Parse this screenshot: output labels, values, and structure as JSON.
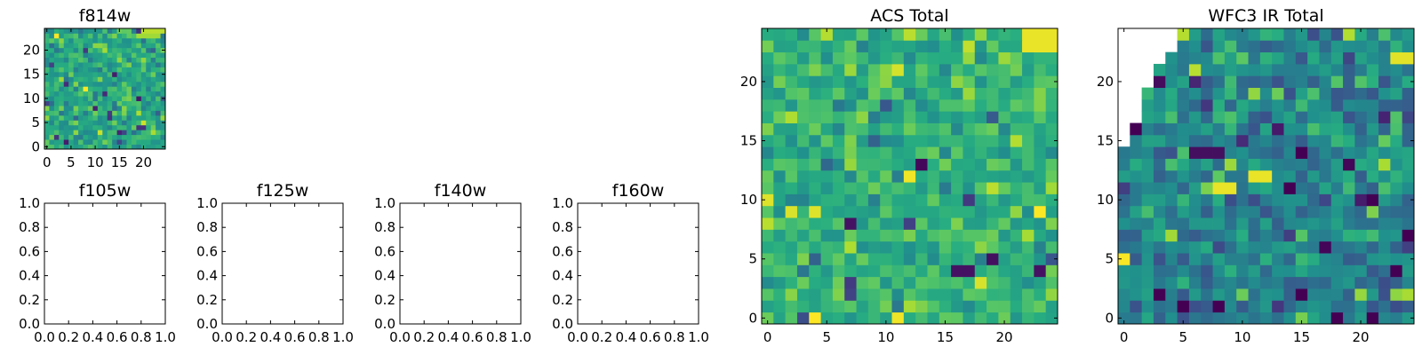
{
  "chart_data": [
    {
      "id": "f814w",
      "type": "heatmap",
      "title": "f814w",
      "xticks": [
        "0",
        "5",
        "10",
        "15",
        "20"
      ],
      "yticks": [
        "0",
        "5",
        "10",
        "15",
        "20"
      ],
      "xlim": [
        -0.5,
        24.5
      ],
      "ylim": [
        -0.5,
        24.5
      ],
      "colormap": "viridis",
      "grid_size": 25,
      "generated": true,
      "seed": 814,
      "value_range": [
        0.15,
        1.0
      ],
      "base_level": 0.66,
      "spread": 0.1,
      "hotspots": [
        {
          "row": 24,
          "cols": [
            20,
            21,
            22,
            23,
            24
          ],
          "value": 0.9
        },
        {
          "row": 23,
          "cols": [
            19,
            20,
            21,
            22,
            23
          ],
          "value": 0.86
        },
        {
          "row": 4,
          "cols": [
            19,
            20
          ],
          "value": 0.15
        },
        {
          "row": 11,
          "cols": [
            12
          ],
          "value": 0.12
        }
      ],
      "masked": []
    },
    {
      "id": "f105w",
      "type": "empty",
      "title": "f105w",
      "xticks": [
        "0.0",
        "0.2",
        "0.4",
        "0.6",
        "0.8",
        "1.0"
      ],
      "yticks": [
        "0.0",
        "0.2",
        "0.4",
        "0.6",
        "0.8",
        "1.0"
      ],
      "xlim": [
        0,
        1
      ],
      "ylim": [
        0,
        1
      ]
    },
    {
      "id": "f125w",
      "type": "empty",
      "title": "f125w",
      "xticks": [
        "0.0",
        "0.2",
        "0.4",
        "0.6",
        "0.8",
        "1.0"
      ],
      "yticks": [
        "0.0",
        "0.2",
        "0.4",
        "0.6",
        "0.8",
        "1.0"
      ],
      "xlim": [
        0,
        1
      ],
      "ylim": [
        0,
        1
      ]
    },
    {
      "id": "f140w",
      "type": "empty",
      "title": "f140w",
      "xticks": [
        "0.0",
        "0.2",
        "0.4",
        "0.6",
        "0.8",
        "1.0"
      ],
      "yticks": [
        "0.0",
        "0.2",
        "0.4",
        "0.6",
        "0.8",
        "1.0"
      ],
      "xlim": [
        0,
        1
      ],
      "ylim": [
        0,
        1
      ]
    },
    {
      "id": "f160w",
      "type": "empty",
      "title": "f160w",
      "xticks": [
        "0.0",
        "0.2",
        "0.4",
        "0.6",
        "0.8",
        "1.0"
      ],
      "yticks": [
        "0.0",
        "0.2",
        "0.4",
        "0.6",
        "0.8",
        "1.0"
      ],
      "xlim": [
        0,
        1
      ],
      "ylim": [
        0,
        1
      ]
    },
    {
      "id": "acs-total",
      "type": "heatmap",
      "title": "ACS Total",
      "xticks": [
        "0",
        "5",
        "10",
        "15",
        "20"
      ],
      "yticks": [
        "0",
        "5",
        "10",
        "15",
        "20"
      ],
      "xlim": [
        -0.5,
        24.5
      ],
      "ylim": [
        -0.5,
        24.5
      ],
      "colormap": "viridis",
      "grid_size": 25,
      "generated": true,
      "seed": 2024,
      "value_range": [
        0.15,
        1.0
      ],
      "base_level": 0.7,
      "spread": 0.1,
      "hotspots": [
        {
          "row": 24,
          "cols": [
            22,
            23,
            24
          ],
          "value": 0.97
        },
        {
          "row": 23,
          "cols": [
            22,
            23,
            24
          ],
          "value": 0.97
        },
        {
          "row": 4,
          "cols": [
            16,
            17
          ],
          "value": 0.05
        },
        {
          "row": 13,
          "cols": [
            13
          ],
          "value": 0.02
        },
        {
          "row": 8,
          "cols": [
            7
          ],
          "value": 0.05
        },
        {
          "row": 5,
          "cols": [
            19
          ],
          "value": 0.04
        },
        {
          "row": 4,
          "cols": [
            23
          ],
          "value": 0.05
        },
        {
          "row": 10,
          "cols": [
            0
          ],
          "value": 0.95
        },
        {
          "row": 0,
          "cols": [
            11
          ],
          "value": 0.98
        },
        {
          "row": 12,
          "cols": [
            12
          ],
          "value": 0.98
        }
      ],
      "masked": []
    },
    {
      "id": "wfc3-ir-total",
      "type": "heatmap",
      "title": "WFC3 IR Total",
      "xticks": [
        "0",
        "5",
        "10",
        "15",
        "20"
      ],
      "yticks": [
        "0",
        "5",
        "10",
        "15",
        "20"
      ],
      "xlim": [
        -0.5,
        24.5
      ],
      "ylim": [
        -0.5,
        24.5
      ],
      "colormap": "viridis",
      "grid_size": 25,
      "generated": true,
      "seed": 3160,
      "value_range": [
        0.02,
        0.45
      ],
      "base_level": 0.22,
      "spread": 0.06,
      "hotspots": [
        {
          "row": 11,
          "cols": [
            8,
            9
          ],
          "value": 0.97
        },
        {
          "row": 12,
          "cols": [
            11,
            12
          ],
          "value": 0.97
        },
        {
          "row": 12,
          "cols": [
            8
          ],
          "value": 0.75
        },
        {
          "row": 11,
          "cols": [
            7
          ],
          "value": 0.8
        },
        {
          "row": 11,
          "cols": [
            11
          ],
          "value": 0.55
        },
        {
          "row": 22,
          "cols": [
            23,
            24
          ],
          "value": 0.96
        },
        {
          "row": 23,
          "cols": [
            23
          ],
          "value": 0.65
        },
        {
          "row": 14,
          "cols": [
            6,
            7,
            8
          ],
          "value": 0.04
        },
        {
          "row": 20,
          "cols": [
            3
          ],
          "value": 0.03
        }
      ],
      "masked": [
        {
          "row": 24,
          "cols": [
            0,
            1,
            2,
            3,
            4
          ]
        },
        {
          "row": 23,
          "cols": [
            0,
            1,
            2,
            3,
            4
          ]
        },
        {
          "row": 22,
          "cols": [
            0,
            1,
            2,
            3
          ]
        },
        {
          "row": 21,
          "cols": [
            0,
            1,
            2
          ]
        },
        {
          "row": 20,
          "cols": [
            0,
            1,
            2
          ]
        },
        {
          "row": 19,
          "cols": [
            0,
            1
          ]
        },
        {
          "row": 18,
          "cols": [
            0,
            1
          ]
        },
        {
          "row": 17,
          "cols": [
            0,
            1
          ]
        },
        {
          "row": 16,
          "cols": [
            0
          ]
        },
        {
          "row": 15,
          "cols": [
            0
          ]
        }
      ]
    }
  ]
}
